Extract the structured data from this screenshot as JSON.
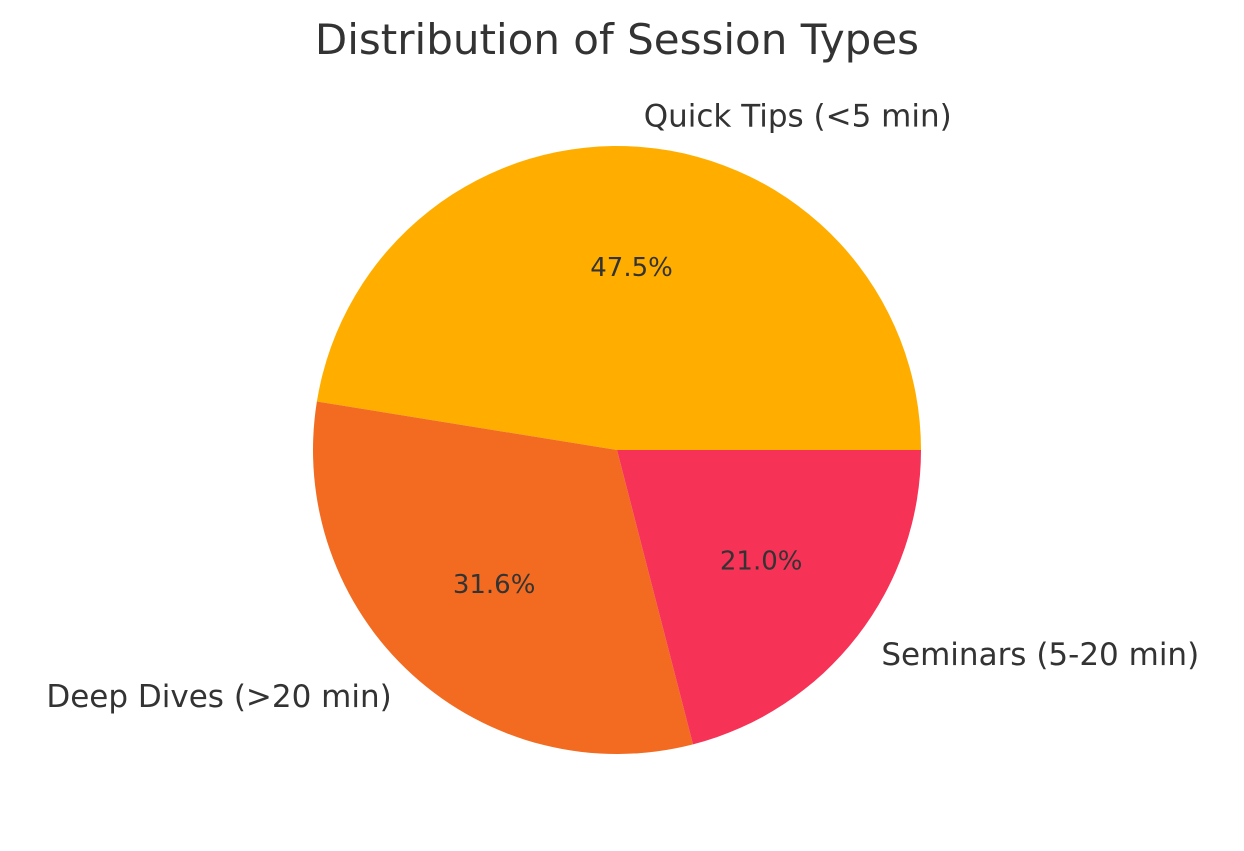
{
  "chart_data": {
    "type": "pie",
    "title": "Distribution of Session Types",
    "start_angle_deg": 0,
    "direction": "counterclockwise",
    "legend": "none",
    "slices": [
      {
        "label": "Quick Tips (<5 min)",
        "value": 47.5,
        "pct_label": "47.5%",
        "color": "#FFAE00"
      },
      {
        "label": "Deep Dives (>20 min)",
        "value": 31.6,
        "pct_label": "31.6%",
        "color": "#F26B21"
      },
      {
        "label": "Seminars (5-20 min)",
        "value": 21.0,
        "pct_label": "21.0%",
        "color": "#F63257"
      }
    ]
  }
}
